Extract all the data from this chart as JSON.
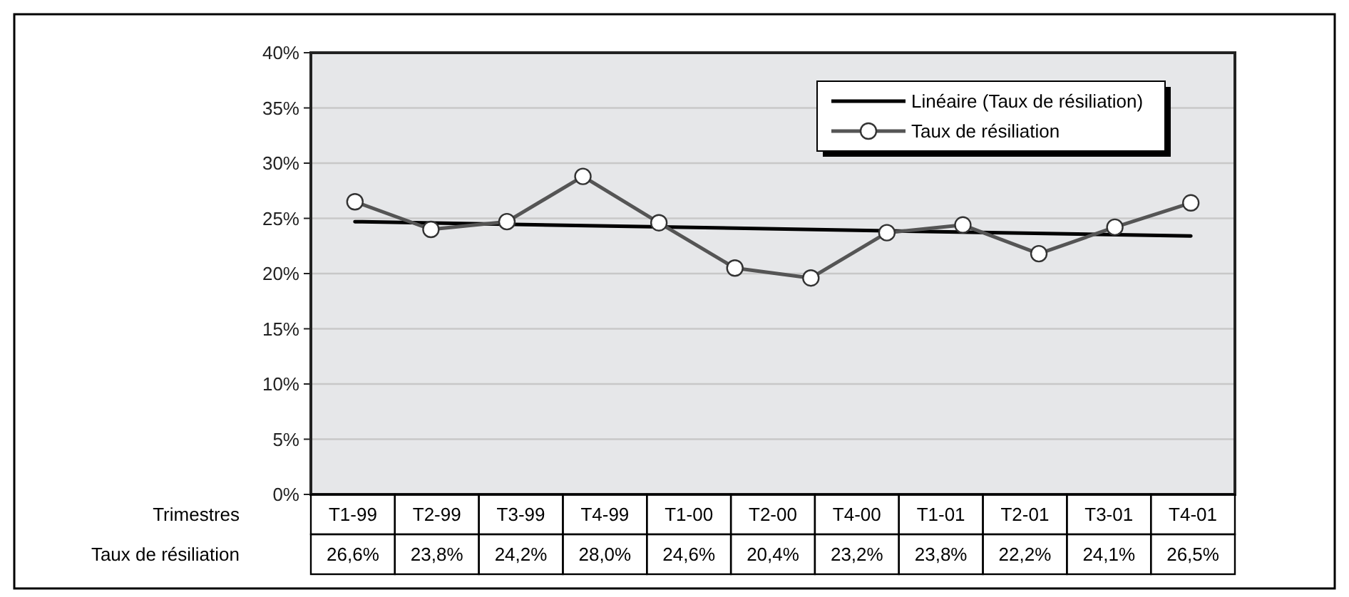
{
  "chart_data": {
    "type": "line",
    "categories": [
      null,
      null,
      null,
      null,
      null,
      null,
      null,
      null,
      null,
      null,
      null,
      null
    ],
    "ylim": [
      0,
      40
    ],
    "yticks": [
      {
        "value": 0,
        "label": "0%"
      },
      {
        "value": 5,
        "label": "5%"
      },
      {
        "value": 10,
        "label": "10%"
      },
      {
        "value": 15,
        "label": "15%"
      },
      {
        "value": 20,
        "label": "20%"
      },
      {
        "value": 25,
        "label": "25%"
      },
      {
        "value": 30,
        "label": "30%"
      },
      {
        "value": 35,
        "label": "35%"
      },
      {
        "value": 40,
        "label": "40%"
      }
    ],
    "grid": "y",
    "legend": "top right",
    "series": [
      {
        "name": "Linéaire (Taux de résiliation)",
        "color": "#000000",
        "values": [
          24.7,
          null,
          null,
          null,
          null,
          null,
          null,
          null,
          null,
          null,
          null,
          23.4
        ],
        "marker": "none"
      },
      {
        "name": "Taux de résiliation",
        "color": "#555555",
        "marker": "circle",
        "values": [
          26.5,
          24.0,
          24.7,
          28.8,
          24.6,
          20.5,
          19.6,
          23.7,
          24.4,
          21.8,
          24.2,
          26.4
        ]
      }
    ],
    "annotations": [
      "Trimestres",
      "T1-99",
      "T2-99",
      "T3-99",
      "T4-99",
      "T1-00",
      "T2-00",
      "T4-00",
      "T1-01",
      "T2-01",
      "T3-01",
      "T4-01",
      "Taux de résiliation",
      "26,6%",
      "23,8%",
      "24,2%",
      "28,0%",
      "24,6%",
      "20,4%",
      "23,2%",
      "23,8%",
      "22,2%",
      "24,1%",
      "26,5%"
    ]
  }
}
